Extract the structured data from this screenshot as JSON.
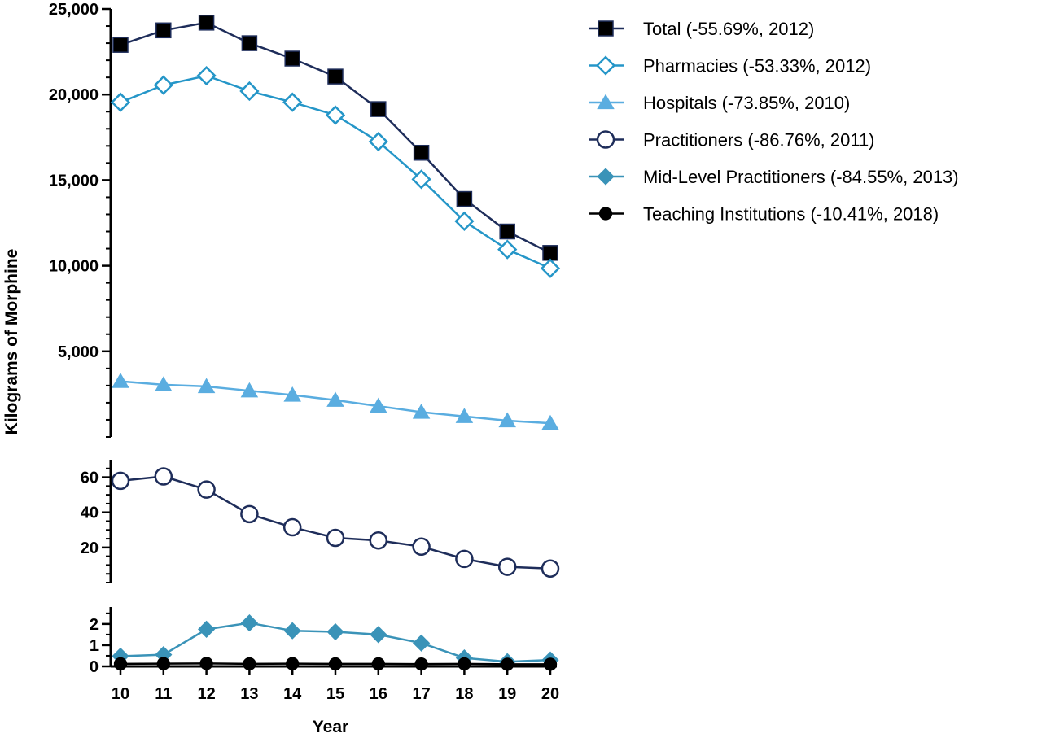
{
  "chart_data": {
    "type": "line",
    "title": "",
    "xlabel": "Year",
    "ylabel": "Kilograms of Morphine",
    "x": [
      10,
      11,
      12,
      13,
      14,
      15,
      16,
      17,
      18,
      19,
      20
    ],
    "segments": [
      {
        "id": "upper",
        "ylim": [
          0,
          25000
        ],
        "yticks_major": [
          5000,
          10000,
          15000,
          20000,
          25000
        ],
        "ytick_labels": [
          "5,000",
          "10,000",
          "15,000",
          "20,000",
          "25,000"
        ]
      },
      {
        "id": "middle",
        "ylim": [
          0,
          70
        ],
        "yticks_major": [
          20,
          40,
          60
        ],
        "ytick_labels": [
          "20",
          "40",
          "60"
        ]
      },
      {
        "id": "lower",
        "ylim": [
          0,
          2.8
        ],
        "yticks_major": [
          0,
          1,
          2
        ],
        "ytick_labels": [
          "0",
          "1",
          "2"
        ]
      }
    ],
    "series": [
      {
        "name": "Total (-55.69%, 2012)",
        "segment": "upper",
        "marker": "square-filled",
        "color": "#1e2d5a",
        "values": [
          22900,
          23750,
          24200,
          23000,
          22100,
          21050,
          19150,
          16600,
          13900,
          12000,
          10750
        ]
      },
      {
        "name": "Pharmacies (-53.33%, 2012)",
        "segment": "upper",
        "marker": "diamond-open",
        "color": "#2596c8",
        "values": [
          19550,
          20550,
          21100,
          20200,
          19550,
          18800,
          17250,
          15050,
          12600,
          10950,
          9850
        ]
      },
      {
        "name": "Hospitals (-73.85%, 2010)",
        "segment": "upper",
        "marker": "triangle-filled",
        "color": "#5aade0",
        "values": [
          3250,
          3050,
          2950,
          2700,
          2450,
          2150,
          1800,
          1450,
          1200,
          950,
          800
        ]
      },
      {
        "name": "Practitioners (-86.76%, 2011)",
        "segment": "middle",
        "marker": "circle-open",
        "color": "#1e2d5a",
        "values": [
          58,
          60.5,
          53,
          39,
          31.5,
          25.5,
          24,
          20.5,
          13.5,
          9,
          8
        ]
      },
      {
        "name": "Mid-Level Practitioners (-84.55%, 2013)",
        "segment": "lower",
        "marker": "diamond-filled",
        "color": "#3a93b8",
        "values": [
          0.48,
          0.55,
          1.75,
          2.05,
          1.68,
          1.63,
          1.5,
          1.1,
          0.4,
          0.22,
          0.3
        ]
      },
      {
        "name": "Teaching Institutions (-10.41%, 2018)",
        "segment": "lower",
        "marker": "circle-filled",
        "color": "#000000",
        "values": [
          0.12,
          0.13,
          0.14,
          0.12,
          0.13,
          0.12,
          0.12,
          0.11,
          0.12,
          0.1,
          0.1
        ]
      }
    ],
    "legend_position": "top-right",
    "grid": false
  }
}
